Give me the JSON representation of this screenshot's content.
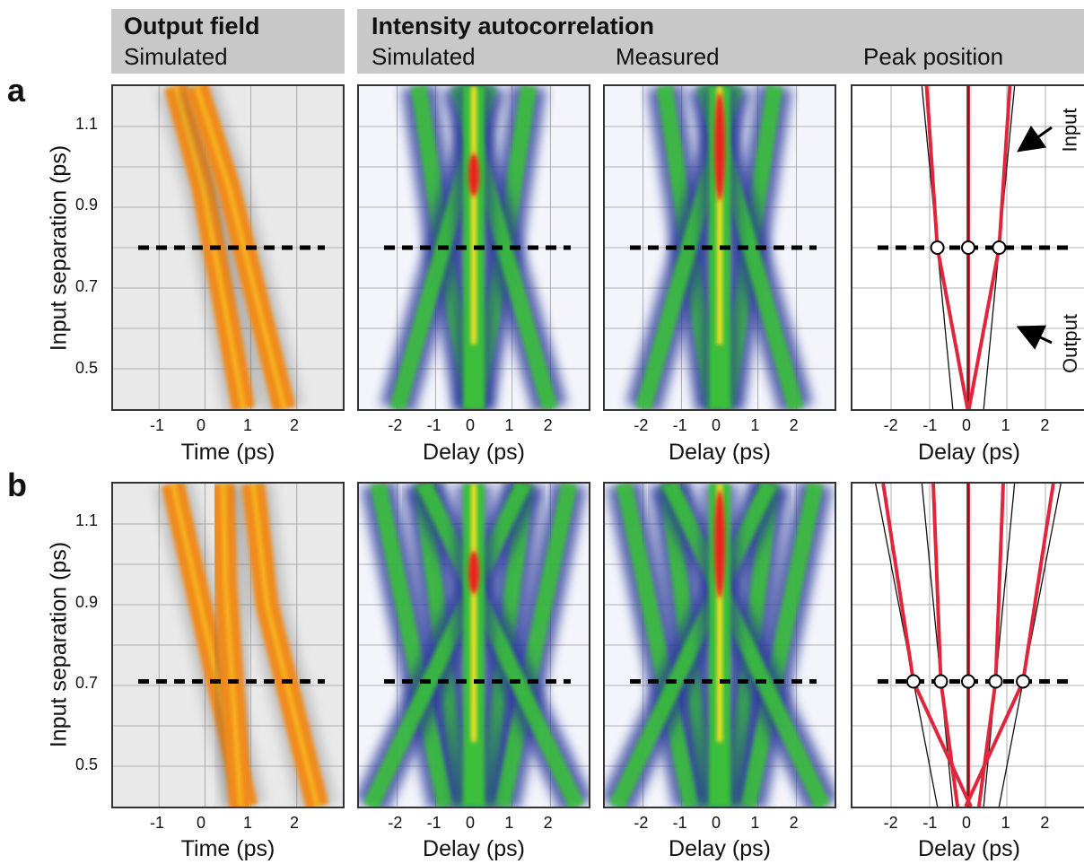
{
  "headers": {
    "output_field": {
      "title": "Output field",
      "sub": "Simulated"
    },
    "intensity": {
      "title": "Intensity autocorrelation",
      "sub_simulated": "Simulated",
      "sub_measured": "Measured",
      "sub_peak": "Peak position"
    }
  },
  "rows": [
    {
      "label": "a",
      "ylabel": "Input separation  (ps)",
      "yticks": [
        "1.1",
        "0.9",
        "0.7",
        "0.5"
      ],
      "marker_sep": 0.8,
      "xlabels": {
        "time": "Time  (ps)",
        "delay": "Delay  (ps)"
      }
    },
    {
      "label": "b",
      "ylabel": "Input separation  (ps)",
      "yticks": [
        "1.1",
        "0.9",
        "0.7",
        "0.5"
      ],
      "marker_sep": 0.71,
      "xlabels": {
        "time": "Time  (ps)",
        "delay": "Delay  (ps)"
      }
    }
  ],
  "xticks_time": [
    "-1",
    "0",
    "1",
    "2"
  ],
  "xticks_delay": [
    "-2",
    "-1",
    "0",
    "1",
    "2"
  ],
  "annotations": {
    "input": "Input",
    "output": "Output"
  },
  "colors": {
    "field": "#f08a1c",
    "field_core": "#ffe020",
    "autocorr_blue": "#2b3a9a",
    "autocorr_green": "#3bbf3b",
    "autocorr_red": "#e8241c",
    "peak_red": "#e0263c",
    "header_bg": "#c8c8c8"
  },
  "chart_data": [
    {
      "type": "heatmap",
      "panel": "a-output-field",
      "xlabel": "Time  (ps)",
      "ylabel": "Input separation  (ps)",
      "xlim": [
        -2,
        3
      ],
      "ylim": [
        0.4,
        1.2
      ]
    },
    {
      "type": "heatmap",
      "panel": "a-autocorr-simulated",
      "xlabel": "Delay  (ps)",
      "xlim": [
        -3,
        3
      ],
      "ylim": [
        0.4,
        1.2
      ]
    },
    {
      "type": "heatmap",
      "panel": "a-autocorr-measured",
      "xlabel": "Delay  (ps)",
      "xlim": [
        -3,
        3
      ],
      "ylim": [
        0.4,
        1.2
      ]
    },
    {
      "type": "line",
      "panel": "a-peak-position",
      "xlabel": "Delay  (ps)",
      "xlim": [
        -3,
        3
      ],
      "ylim": [
        0.4,
        1.2
      ],
      "series": [
        {
          "name": "Input",
          "x_at_y": [
            [
              0.4,
              0.4
            ],
            [
              1.2,
              1.2
            ]
          ]
        },
        {
          "name": "Output"
        }
      ],
      "markers_delay": [
        -0.8,
        0,
        0.8
      ],
      "marker_sep": 0.8
    },
    {
      "type": "heatmap",
      "panel": "b-output-field",
      "xlabel": "Time  (ps)",
      "ylabel": "Input separation  (ps)",
      "xlim": [
        -2,
        3
      ],
      "ylim": [
        0.4,
        1.2
      ]
    },
    {
      "type": "heatmap",
      "panel": "b-autocorr-simulated",
      "xlabel": "Delay  (ps)",
      "xlim": [
        -3,
        3
      ],
      "ylim": [
        0.4,
        1.2
      ]
    },
    {
      "type": "heatmap",
      "panel": "b-autocorr-measured",
      "xlabel": "Delay  (ps)",
      "xlim": [
        -3,
        3
      ],
      "ylim": [
        0.4,
        1.2
      ]
    },
    {
      "type": "line",
      "panel": "b-peak-position",
      "xlabel": "Delay  (ps)",
      "xlim": [
        -3,
        3
      ],
      "ylim": [
        0.4,
        1.2
      ],
      "markers_delay": [
        -1.42,
        -0.71,
        0,
        0.71,
        1.42
      ],
      "marker_sep": 0.71
    }
  ]
}
